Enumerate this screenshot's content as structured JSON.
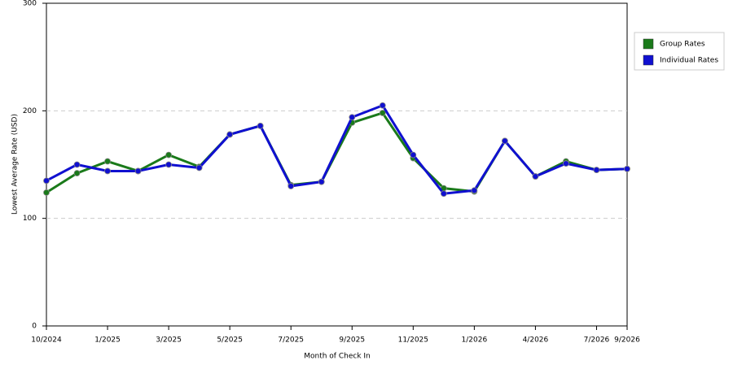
{
  "chart_data": {
    "type": "line",
    "x_label": "Month of Check In",
    "y_label": "Lowest Average Rate (USD)",
    "categories": [
      "10/2024",
      null,
      "1/2025",
      null,
      "3/2025",
      null,
      "5/2025",
      null,
      "7/2025",
      null,
      "9/2025",
      null,
      "11/2025",
      null,
      "1/2026",
      null,
      "4/2026",
      null,
      "7/2026",
      "9/2026"
    ],
    "series": [
      {
        "name": "Group Rates",
        "color": "#1a7a1a",
        "values": [
          124,
          142,
          153,
          144,
          159,
          148,
          178,
          186,
          131,
          134,
          189,
          198,
          156,
          128,
          125,
          172,
          139,
          153,
          145,
          146
        ]
      },
      {
        "name": "Individual Rates",
        "color": "#1010d0",
        "values": [
          135,
          150,
          144,
          144,
          150,
          147,
          178,
          186,
          130,
          134,
          194,
          205,
          159,
          123,
          126,
          172,
          139,
          151,
          145,
          146
        ]
      }
    ],
    "ylim": [
      0,
      300
    ],
    "yticks": [
      0,
      100,
      200,
      300
    ],
    "grid": true,
    "legend": "right"
  }
}
